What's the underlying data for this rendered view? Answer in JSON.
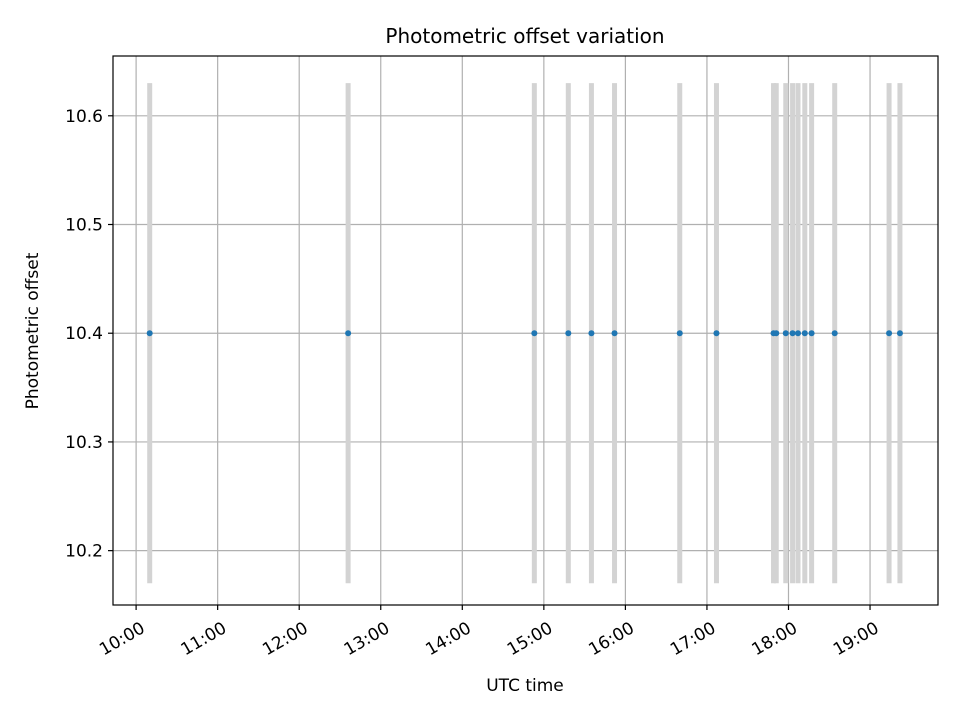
{
  "chart_data": {
    "type": "scatter",
    "title": "Photometric offset variation",
    "xlabel": "UTC time",
    "ylabel": "Photometric offset",
    "xlim": [
      "09:43",
      "19:50"
    ],
    "ylim": [
      10.15,
      10.655
    ],
    "x_ticks": [
      "10:00",
      "11:00",
      "12:00",
      "13:00",
      "14:00",
      "15:00",
      "16:00",
      "17:00",
      "18:00",
      "19:00"
    ],
    "y_ticks": [
      10.2,
      10.3,
      10.4,
      10.5,
      10.6
    ],
    "grid": true,
    "series": [
      {
        "x": [
          "10:10",
          "12:36",
          "14:53",
          "15:18",
          "15:35",
          "15:52",
          "16:40",
          "17:07",
          "17:49",
          "17:51",
          "17:58",
          "18:03",
          "18:07",
          "18:12",
          "18:17",
          "18:34",
          "19:14",
          "19:22"
        ],
        "y": [
          10.4,
          10.4,
          10.4,
          10.4,
          10.4,
          10.4,
          10.4,
          10.4,
          10.4,
          10.4,
          10.4,
          10.4,
          10.4,
          10.4,
          10.4,
          10.4,
          10.4,
          10.4
        ],
        "error_low": 10.17,
        "error_high": 10.63,
        "marker_color": "#1f77b4",
        "errorbar_color": "#d3d3d3"
      }
    ]
  }
}
